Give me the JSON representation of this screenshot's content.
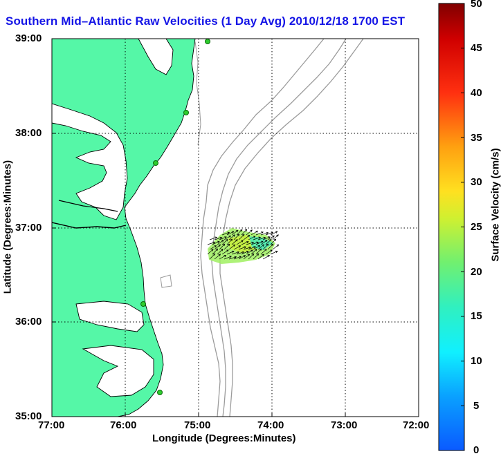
{
  "title": "Southern Mid–Atlantic Raw Velocities (1 Day Avg) 2010/12/18 1700 EST",
  "xlabel": "Longitude (Degrees:Minutes)",
  "ylabel": "Latitude (Degrees:Minutes)",
  "x_ticks": [
    "77:00",
    "76:00",
    "75:00",
    "74:00",
    "73:00",
    "72:00"
  ],
  "y_ticks": [
    "39:00",
    "38:00",
    "37:00",
    "36:00",
    "35:00"
  ],
  "colorbar": {
    "label": "Surface Velocity (cm/s)",
    "ticks": [
      "50",
      "45",
      "40",
      "35",
      "30",
      "25",
      "20",
      "15",
      "10",
      "5",
      "0"
    ]
  },
  "colors": {
    "land": "#55f7a7",
    "title": "#1414e6",
    "bathymetry": "#9b9b9b",
    "station": "#2ecc2e"
  },
  "map": {
    "lon_range": [
      -77,
      -72
    ],
    "lat_range": [
      35,
      39
    ],
    "grid": true
  }
}
